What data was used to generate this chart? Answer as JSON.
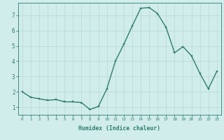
{
  "x": [
    0,
    1,
    2,
    3,
    4,
    5,
    6,
    7,
    8,
    9,
    10,
    11,
    12,
    13,
    14,
    15,
    16,
    17,
    18,
    19,
    20,
    21,
    22,
    23
  ],
  "y": [
    2.0,
    1.65,
    1.55,
    1.45,
    1.5,
    1.35,
    1.35,
    1.3,
    0.85,
    1.05,
    2.2,
    4.0,
    5.1,
    6.3,
    7.45,
    7.5,
    7.1,
    6.2,
    4.55,
    4.95,
    4.35,
    3.2,
    2.2,
    3.35
  ],
  "xlabel": "Humidex (Indice chaleur)",
  "ylabel": "",
  "title": "",
  "line_color": "#2e7d6e",
  "marker_color": "#2e7d6e",
  "bg_color": "#d0eceb",
  "grid_color": "#b8d8d5",
  "axis_color": "#2e7d6e",
  "tick_color": "#2e7d6e",
  "ylim": [
    0.5,
    7.8
  ],
  "xlim": [
    -0.5,
    23.5
  ],
  "yticks": [
    1,
    2,
    3,
    4,
    5,
    6,
    7
  ],
  "xticks": [
    0,
    1,
    2,
    3,
    4,
    5,
    6,
    7,
    8,
    9,
    10,
    11,
    12,
    13,
    14,
    15,
    16,
    17,
    18,
    19,
    20,
    21,
    22,
    23
  ],
  "xtick_labels": [
    "0",
    "1",
    "2",
    "3",
    "4",
    "5",
    "6",
    "7",
    "8",
    "9",
    "10",
    "11",
    "12",
    "13",
    "14",
    "15",
    "16",
    "17",
    "18",
    "19",
    "20",
    "21",
    "22",
    "23"
  ],
  "linewidth": 1.0,
  "markersize": 2.0
}
